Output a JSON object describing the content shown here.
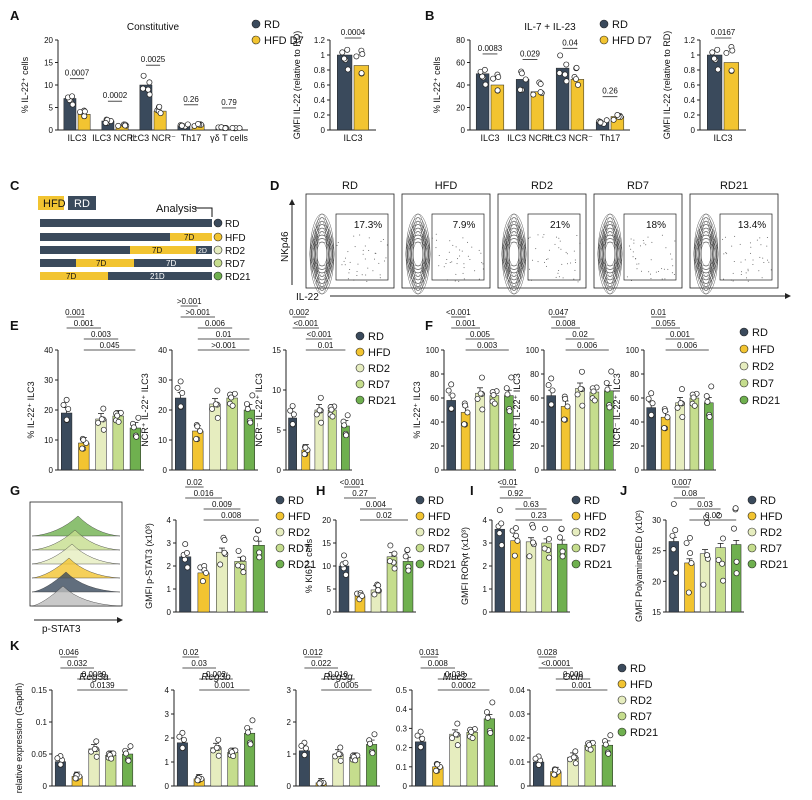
{
  "figure": {
    "series_order": [
      "RD",
      "HFD",
      "RD2",
      "RD7",
      "RD21"
    ],
    "colors": {
      "RD": "#3a4a5c",
      "HFD": "#f2c431",
      "RD2": "#e6edbf",
      "RD7": "#c5dd8d",
      "RD21": "#6fb04f",
      "RD_D7": "#3a4a5c",
      "HFD_D7": "#f2c431"
    },
    "legend_main": [
      "RD",
      "HFD",
      "RD2",
      "RD7",
      "RD21"
    ],
    "legend_ab": [
      "RD",
      "HFD D7"
    ]
  },
  "panel_labels": {
    "A": "A",
    "B": "B",
    "C": "C",
    "D": "D",
    "E": "E",
    "F": "F",
    "G": "G",
    "H": "H",
    "I": "I",
    "J": "J",
    "K": "K"
  },
  "chart_data": [
    {
      "id": "A1",
      "type": "bar",
      "title": "Constitutive",
      "ylabel": "% IL-22⁺ cells",
      "ylim": [
        0,
        20
      ],
      "yticks": [
        0,
        5,
        10,
        15,
        20
      ],
      "categories": [
        "ILC3",
        "ILC3 NCR⁺",
        "ILC3 NCR⁻",
        "Th17",
        "γδ T cells"
      ],
      "series": [
        {
          "name": "RD",
          "values": [
            7.0,
            2.0,
            10.0,
            1.0,
            0.5
          ]
        },
        {
          "name": "HFD D7",
          "values": [
            3.5,
            1.0,
            4.2,
            1.2,
            0.4
          ]
        }
      ],
      "pvalues": [
        "0.0007",
        "0.0002",
        "0.0025",
        "0.26",
        "0.79"
      ]
    },
    {
      "id": "A2",
      "type": "bar",
      "title": "",
      "ylabel": "GMFI IL-22 (relative to RD)",
      "ylim": [
        0,
        1.2
      ],
      "yticks": [
        0,
        0.2,
        0.4,
        0.6,
        0.8,
        1.0,
        1.2
      ],
      "categories": [
        "ILC3"
      ],
      "series": [
        {
          "name": "RD",
          "values": [
            1.0
          ]
        },
        {
          "name": "HFD D7",
          "values": [
            0.86
          ]
        }
      ],
      "pvalues": [
        "0.0004"
      ]
    },
    {
      "id": "B1",
      "type": "bar",
      "title": "IL-7 + IL-23",
      "ylabel": "% IL-22⁺ cells",
      "ylim": [
        0,
        80
      ],
      "yticks": [
        0,
        20,
        40,
        60,
        80
      ],
      "categories": [
        "ILC3",
        "ILC3 NCR⁺",
        "ILC3 NCR⁻",
        "Th17"
      ],
      "series": [
        {
          "name": "RD",
          "values": [
            50,
            45,
            55,
            7
          ]
        },
        {
          "name": "HFD D7",
          "values": [
            40,
            34,
            45,
            12
          ]
        }
      ],
      "pvalues": [
        "0.0083",
        "0.029",
        "0.04",
        "0.26"
      ]
    },
    {
      "id": "B2",
      "type": "bar",
      "title": "",
      "ylabel": "GMFI IL-22 (relative to RD)",
      "ylim": [
        0,
        1.2
      ],
      "yticks": [
        0,
        0.2,
        0.4,
        0.6,
        0.8,
        1.0,
        1.2
      ],
      "categories": [
        "ILC3"
      ],
      "series": [
        {
          "name": "RD",
          "values": [
            1.0
          ]
        },
        {
          "name": "HFD D7",
          "values": [
            0.9
          ]
        }
      ],
      "pvalues": [
        "0.0167"
      ]
    },
    {
      "id": "E1",
      "type": "bar",
      "ylabel": "% IL-22⁺ ILC3",
      "ylim": [
        0,
        40
      ],
      "yticks": [
        0,
        10,
        20,
        30,
        40
      ],
      "values": [
        19,
        9,
        17,
        18,
        14
      ],
      "comparisons": [
        "0.001",
        "0.001",
        "0.003",
        "0.045"
      ]
    },
    {
      "id": "E2",
      "type": "bar",
      "ylabel": "NCR⁺ IL-22⁺ ILC3",
      "ylim": [
        0,
        40
      ],
      "yticks": [
        0,
        10,
        20,
        30,
        40
      ],
      "values": [
        24,
        13,
        22,
        24,
        20
      ],
      "comparisons": [
        ">0.001",
        ">0.001",
        "0.006",
        "0.01",
        ">0.001"
      ]
    },
    {
      "id": "E3",
      "type": "bar",
      "ylabel": "NCR⁻ IL-22⁺ ILC3",
      "ylim": [
        0,
        15
      ],
      "yticks": [
        0,
        5,
        10,
        15
      ],
      "values": [
        6.5,
        2.5,
        7.5,
        7.5,
        5.5
      ],
      "comparisons": [
        "0.002",
        "<0.001",
        "<0.001",
        "0.01"
      ]
    },
    {
      "id": "F1",
      "type": "bar",
      "ylabel": "% IL-22⁺ ILC3",
      "ylim": [
        0,
        100
      ],
      "yticks": [
        0,
        20,
        40,
        60,
        80,
        100
      ],
      "values": [
        58,
        48,
        64,
        62,
        62
      ],
      "comparisons": [
        "<0.001",
        "0.001",
        "0.005",
        "0.003"
      ]
    },
    {
      "id": "F2",
      "type": "bar",
      "ylabel": "NCR⁺ IL-22⁺ ILC3",
      "ylim": [
        0,
        100
      ],
      "yticks": [
        0,
        20,
        40,
        60,
        80,
        100
      ],
      "values": [
        62,
        53,
        68,
        65,
        66
      ],
      "comparisons": [
        "0.047",
        "0.008",
        "0.02",
        "0.006"
      ]
    },
    {
      "id": "F3",
      "type": "bar",
      "ylabel": "NCR⁻ IL-22⁺ ILC3",
      "ylim": [
        0,
        100
      ],
      "yticks": [
        0,
        20,
        40,
        60,
        80,
        100
      ],
      "values": [
        52,
        44,
        56,
        60,
        56
      ],
      "comparisons": [
        "0.01",
        "0.055",
        "0.001",
        "0.006"
      ]
    },
    {
      "id": "G",
      "type": "bar",
      "ylabel": "GMFI p-STAT3 (x10³)",
      "ylim": [
        0,
        4
      ],
      "yticks": [
        0,
        1,
        2,
        3,
        4
      ],
      "values": [
        2.4,
        1.7,
        2.6,
        2.2,
        2.9
      ],
      "comparisons": [
        "0.02",
        "0.016",
        "0.009",
        "0.008"
      ]
    },
    {
      "id": "H",
      "type": "bar",
      "ylabel": "% KI67⁺ cells",
      "ylim": [
        0,
        20
      ],
      "yticks": [
        0,
        5,
        10,
        15,
        20
      ],
      "values": [
        10,
        3.5,
        4.8,
        12,
        11
      ],
      "comparisons": [
        "<0.001",
        "0.27",
        "0.004",
        "0.02"
      ]
    },
    {
      "id": "I",
      "type": "bar",
      "ylabel": "GMFI RORγt (x10³)",
      "ylim": [
        0,
        4
      ],
      "yticks": [
        0,
        1,
        2,
        3,
        4
      ],
      "values": [
        3.6,
        3.1,
        3.05,
        3.0,
        2.95
      ],
      "comparisons": [
        "<0.01",
        "0.92",
        "0.63",
        "0.23"
      ]
    },
    {
      "id": "J",
      "type": "bar",
      "ylabel": "GMFI PolyamineRED (x10²)",
      "ylim": [
        15,
        30
      ],
      "yticks": [
        15,
        20,
        25,
        30
      ],
      "values": [
        26.5,
        23,
        24.5,
        25.5,
        26
      ],
      "comparisons": [
        "0.007",
        "0.08",
        "0.03",
        "0.02"
      ]
    },
    {
      "id": "K1",
      "type": "bar",
      "title": "Reg3a",
      "ylabel": "relative expression (Gapdh)",
      "ylim": [
        0,
        0.15
      ],
      "yticks": [
        0,
        0.05,
        0.1,
        0.15
      ],
      "values": [
        0.038,
        0.015,
        0.058,
        0.048,
        0.05
      ],
      "comparisons": [
        "0.046",
        "0.032",
        "0.0009",
        "0.0139"
      ]
    },
    {
      "id": "K2",
      "type": "bar",
      "title": "Reg3b",
      "ylim": [
        0,
        4
      ],
      "yticks": [
        0,
        1,
        2,
        3,
        4
      ],
      "values": [
        1.8,
        0.3,
        1.6,
        1.4,
        2.2
      ],
      "comparisons": [
        "0.02",
        "0.03",
        "0.002",
        "0.001"
      ]
    },
    {
      "id": "K3",
      "type": "bar",
      "title": "Reg3g",
      "ylim": [
        0,
        3
      ],
      "yticks": [
        0,
        1,
        2,
        3
      ],
      "values": [
        1.1,
        0.1,
        1.0,
        0.9,
        1.3
      ],
      "comparisons": [
        "0.012",
        "0.022",
        "0.010",
        "0.0005"
      ]
    },
    {
      "id": "K4",
      "type": "bar",
      "title": "Muc2",
      "ylim": [
        0,
        0.5
      ],
      "yticks": [
        0,
        0.1,
        0.2,
        0.3,
        0.4,
        0.5
      ],
      "values": [
        0.23,
        0.1,
        0.27,
        0.28,
        0.35
      ],
      "comparisons": [
        "0.031",
        "0.008",
        "0.038",
        "0.0002"
      ]
    },
    {
      "id": "K5",
      "type": "bar",
      "title": "Ocln",
      "ylim": [
        0,
        0.04
      ],
      "yticks": [
        0,
        0.01,
        0.02,
        0.03,
        0.04
      ],
      "values": [
        0.01,
        0.006,
        0.012,
        0.017,
        0.017
      ],
      "comparisons": [
        "0.028",
        "<0.0001",
        "0.009",
        "0.001"
      ]
    }
  ],
  "panelC": {
    "legend": [
      "HFD",
      "RD"
    ],
    "analysis_label": "Analysis",
    "row_labels": [
      "RD",
      "HFD",
      "RD2",
      "RD7",
      "RD21"
    ],
    "bar_texts": [
      "7D",
      "7D",
      "2D",
      "7D",
      "7D",
      "7D",
      "21D"
    ]
  },
  "panelD": {
    "columns": [
      "RD",
      "HFD",
      "RD2",
      "RD7",
      "RD21"
    ],
    "percentages": [
      "17.3%",
      "7.9%",
      "21%",
      "18%",
      "13.4%"
    ],
    "ylabel": "NKp46",
    "xlabel": "IL-22"
  },
  "panelG_histogram": {
    "xlabel": "p-STAT3"
  }
}
